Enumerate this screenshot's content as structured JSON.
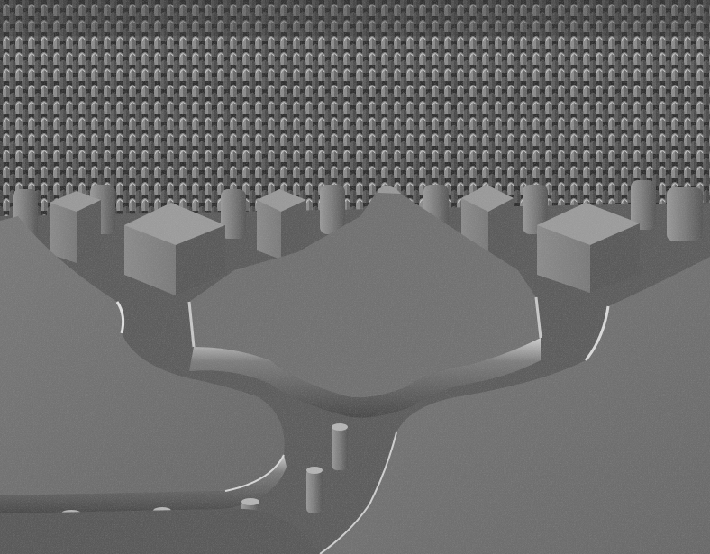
{
  "image": {
    "kind": "scanning-electron-micrograph",
    "palette": {
      "base": "#6e6e6e",
      "pillar_face": "#8a8a8a",
      "pillar_shadow": "#444444",
      "edge_highlight": "#d8d8d8",
      "deep_shadow": "#2a2a2a",
      "substrate_light": "#7a7a7a"
    }
  }
}
